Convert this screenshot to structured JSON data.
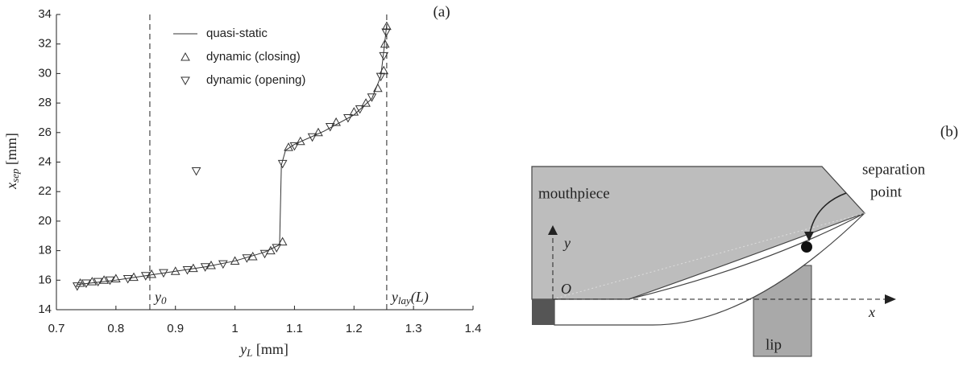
{
  "chart_data": {
    "type": "scatter",
    "panel": "(a)",
    "xlabel": {
      "main": "y",
      "sub": "L",
      "unit": " [mm]"
    },
    "ylabel": {
      "main": "x",
      "sub": "sep",
      "unit": " [mm]"
    },
    "xlim": [
      0.7,
      1.4
    ],
    "xticks": [
      0.7,
      0.8,
      0.9,
      1,
      1.1,
      1.2,
      1.3,
      1.4
    ],
    "ylim": [
      14,
      34
    ],
    "yticks": [
      14,
      16,
      18,
      20,
      22,
      24,
      26,
      28,
      30,
      32,
      34
    ],
    "annotations": [
      {
        "x": 0.857,
        "text": "y",
        "sub": "0"
      },
      {
        "x": 1.255,
        "text": "y",
        "sub": "lay",
        "suffix": "(L)"
      }
    ],
    "series": [
      {
        "name": "quasi-static",
        "marker": "line",
        "color": "#333333",
        "x": [
          0.735,
          0.8,
          0.85,
          0.9,
          0.95,
          1.0,
          1.05,
          1.075,
          1.078,
          1.085,
          1.1,
          1.15,
          1.2,
          1.23,
          1.245,
          1.25,
          1.255
        ],
        "values": [
          15.7,
          16.0,
          16.3,
          16.6,
          16.9,
          17.3,
          17.9,
          18.4,
          23.8,
          24.8,
          25.2,
          26.1,
          27.2,
          28.3,
          29.8,
          31.5,
          33.3
        ]
      },
      {
        "name": "dynamic (closing)",
        "marker": "triangle-up",
        "color": "#333333",
        "x": [
          0.74,
          0.76,
          0.78,
          0.8,
          0.83,
          0.86,
          0.9,
          0.93,
          0.96,
          1.0,
          1.03,
          1.06,
          1.08,
          1.09,
          1.11,
          1.14,
          1.17,
          1.2,
          1.22,
          1.24,
          1.25,
          1.252,
          1.255
        ],
        "values": [
          15.8,
          15.9,
          16.0,
          16.1,
          16.2,
          16.4,
          16.6,
          16.8,
          17.0,
          17.3,
          17.6,
          18.0,
          18.6,
          25.0,
          25.4,
          26.0,
          26.7,
          27.4,
          28.0,
          29.0,
          30.2,
          32.0,
          33.2
        ]
      },
      {
        "name": "dynamic (opening)",
        "marker": "triangle-down",
        "color": "#333333",
        "x": [
          0.735,
          0.75,
          0.77,
          0.79,
          0.82,
          0.85,
          0.88,
          0.92,
          0.935,
          0.95,
          0.98,
          1.02,
          1.05,
          1.07,
          1.08,
          1.1,
          1.13,
          1.16,
          1.19,
          1.21,
          1.23,
          1.245,
          1.25,
          1.254
        ],
        "values": [
          15.6,
          15.8,
          15.9,
          16.0,
          16.1,
          16.3,
          16.5,
          16.7,
          23.4,
          16.9,
          17.1,
          17.5,
          17.8,
          18.2,
          23.9,
          25.1,
          25.7,
          26.4,
          27.0,
          27.6,
          28.4,
          29.8,
          31.2,
          32.8
        ]
      }
    ]
  },
  "diagram": {
    "panel": "(b)",
    "mouthpiece": "mouthpiece",
    "separation": [
      "separation",
      "point"
    ],
    "y_axis": "y",
    "origin": "O",
    "x_axis": "x",
    "lip": "lip"
  }
}
